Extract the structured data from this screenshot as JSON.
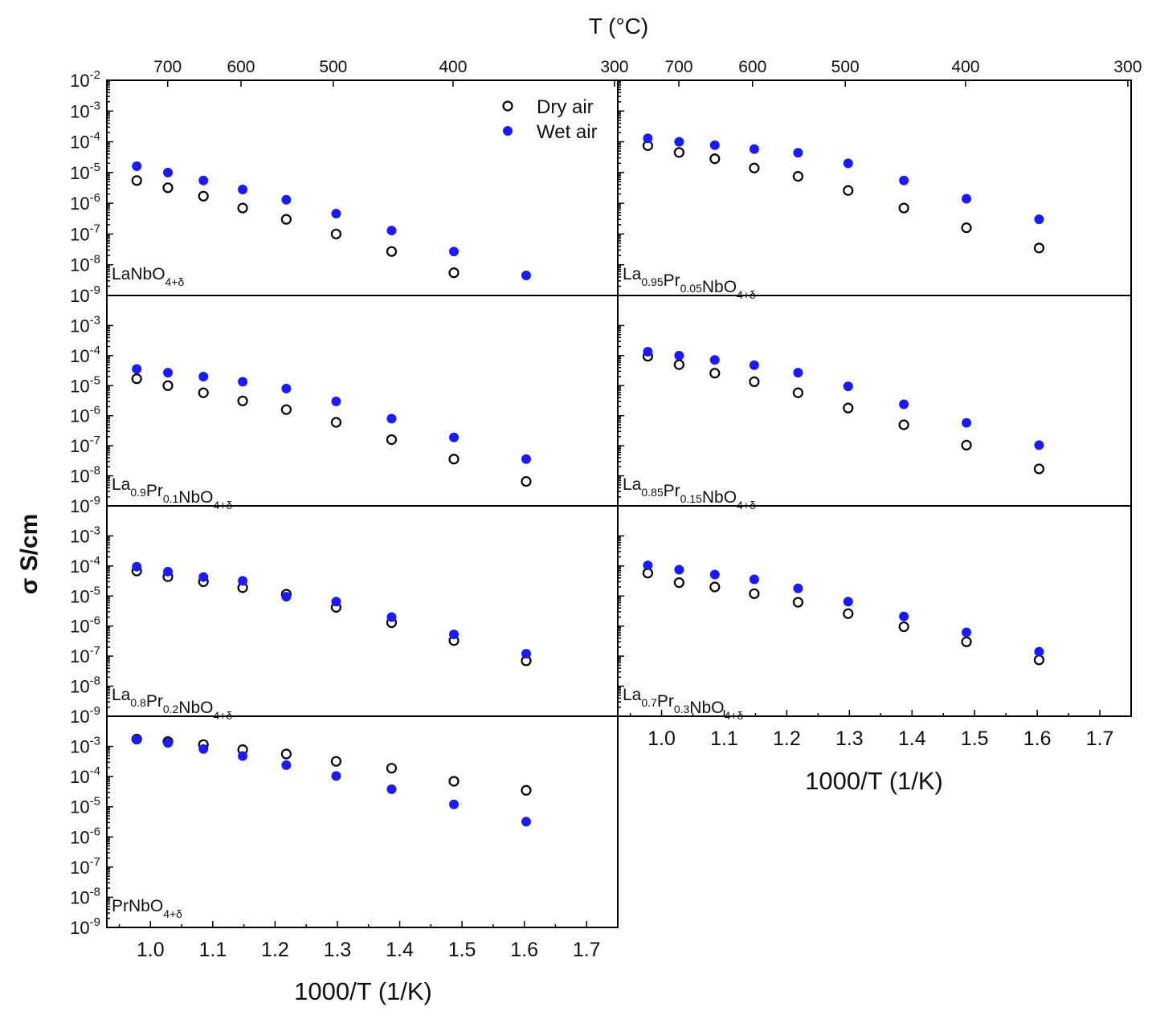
{
  "chart_data": {
    "type": "scatter",
    "title": "",
    "xlabel": "1000/T (1/K)",
    "ylabel": "σ S/cm",
    "top_axis_label": "T (°C)",
    "top_ticks_left": [
      "700",
      "600",
      "500",
      "400",
      "300"
    ],
    "top_ticks_right": [
      "700",
      "600",
      "500",
      "400",
      "300"
    ],
    "x_ticks": [
      "1.0",
      "1.1",
      "1.2",
      "1.3",
      "1.4",
      "1.5",
      "1.6",
      "1.7"
    ],
    "y_tick_exponents": [
      "-9",
      "-8",
      "-7",
      "-6",
      "-5",
      "-4",
      "-3"
    ],
    "top_y_exponent": "-2",
    "y_tick_base": "10",
    "xlim": [
      0.93,
      1.75
    ],
    "ylim_log10": [
      -9,
      -2
    ],
    "legend": {
      "position": "top-right of first panel",
      "entries": [
        "Dry air",
        "Wet air"
      ]
    },
    "series_colors": {
      "Dry air": "#000000",
      "Wet air": "#1a1aff"
    },
    "x": [
      0.978,
      1.028,
      1.085,
      1.148,
      1.218,
      1.298,
      1.387,
      1.487,
      1.603
    ],
    "panels": [
      {
        "label_parts": [
          [
            "La",
            ""
          ],
          [
            "NbO",
            "4+δ"
          ]
        ],
        "dry": [
          5.5e-06,
          3.2e-06,
          1.7e-06,
          7e-07,
          3e-07,
          1e-07,
          2.7e-08,
          5.5e-09,
          null
        ],
        "wet": [
          1.6e-05,
          1e-05,
          5.5e-06,
          2.8e-06,
          1.3e-06,
          4.6e-07,
          1.3e-07,
          2.7e-08,
          4.5e-09
        ]
      },
      {
        "label_parts": [
          [
            "La",
            "0.95"
          ],
          [
            "Pr",
            "0.05"
          ],
          [
            "NbO",
            "4+δ"
          ]
        ],
        "dry": [
          7.5e-05,
          4.5e-05,
          2.8e-05,
          1.4e-05,
          7.5e-06,
          2.6e-06,
          7e-07,
          1.6e-07,
          3.5e-08
        ],
        "wet": [
          0.00013,
          0.0001,
          7.8e-05,
          5.8e-05,
          4.4e-05,
          2e-05,
          5.5e-06,
          1.4e-06,
          3e-07
        ]
      },
      {
        "label_parts": [
          [
            "La",
            "0.9"
          ],
          [
            "Pr",
            "0.1"
          ],
          [
            "NbO",
            "4+δ"
          ]
        ],
        "dry": [
          1.7e-05,
          1e-05,
          5.8e-06,
          3.1e-06,
          1.6e-06,
          6e-07,
          1.6e-07,
          3.6e-08,
          6.5e-09
        ],
        "wet": [
          3.6e-05,
          2.7e-05,
          2e-05,
          1.35e-05,
          8e-06,
          3e-06,
          8e-07,
          1.9e-07,
          3.6e-08
        ]
      },
      {
        "label_parts": [
          [
            "La",
            "0.85"
          ],
          [
            "Pr",
            "0.15"
          ],
          [
            "NbO",
            "4+δ"
          ]
        ],
        "dry": [
          9.5e-05,
          5e-05,
          2.6e-05,
          1.35e-05,
          5.8e-06,
          1.8e-06,
          5e-07,
          1.05e-07,
          1.7e-08
        ],
        "wet": [
          0.000135,
          0.0001,
          7.2e-05,
          4.8e-05,
          2.7e-05,
          9.5e-06,
          2.4e-06,
          5.8e-07,
          1.05e-07
        ]
      },
      {
        "label_parts": [
          [
            "La",
            "0.8"
          ],
          [
            "Pr",
            "0.2"
          ],
          [
            "NbO",
            "4+δ"
          ]
        ],
        "dry": [
          6.8e-05,
          4.4e-05,
          3e-05,
          1.9e-05,
          1.15e-05,
          4.2e-06,
          1.3e-06,
          3.3e-07,
          7e-08
        ],
        "wet": [
          9.5e-05,
          6.5e-05,
          4.3e-05,
          3.2e-05,
          9.5e-06,
          6.5e-06,
          2e-06,
          5.3e-07,
          1.2e-07
        ]
      },
      {
        "label_parts": [
          [
            "La",
            "0.7"
          ],
          [
            "Pr",
            "0.3"
          ],
          [
            "NbO",
            "4+δ"
          ]
        ],
        "dry": [
          5.8e-05,
          2.8e-05,
          2e-05,
          1.2e-05,
          6.2e-06,
          2.6e-06,
          9.5e-07,
          3e-07,
          7.5e-08
        ],
        "wet": [
          0.000105,
          7.5e-05,
          5.2e-05,
          3.6e-05,
          1.8e-05,
          6.5e-06,
          2.1e-06,
          6.2e-07,
          1.4e-07
        ]
      },
      {
        "label_parts": [
          [
            "PrNbO",
            "4+δ"
          ]
        ],
        "dry": [
          0.00175,
          0.00145,
          0.00115,
          0.00078,
          0.00056,
          0.00032,
          0.00019,
          7e-05,
          3.5e-05
        ],
        "wet": [
          0.0017,
          0.0013,
          0.00082,
          0.00048,
          0.00024,
          0.000105,
          3.8e-05,
          1.2e-05,
          3.2e-06
        ]
      }
    ]
  }
}
